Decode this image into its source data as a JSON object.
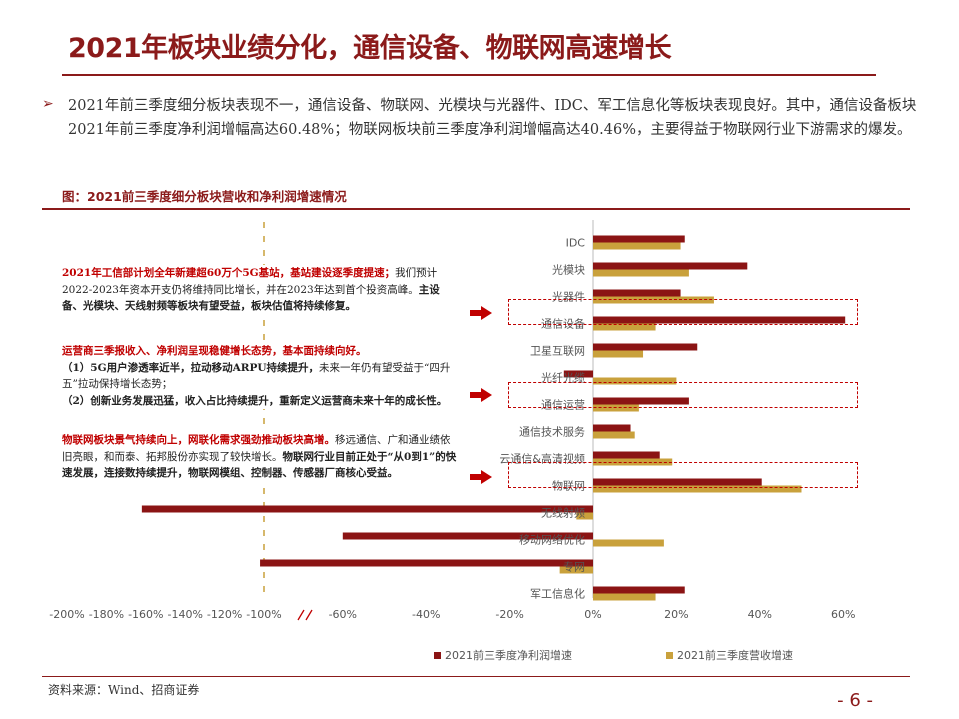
{
  "slide": {
    "title": "2021年板块业绩分化，通信设备、物联网高速增长",
    "bullet_text": "2021年前三季度细分板块表现不一，通信设备、物联网、光模块与光器件、IDC、军工信息化等板块表现良好。其中，通信设备板块2021年前三季度净利润增幅高达60.48%；物联网板块前三季度净利润增幅高达40.46%，主要得益于物联网行业下游需求的爆发。",
    "figure_title": "图：2021前三季度细分板块营收和净利润增速情况",
    "source": "资料来源：Wind、招商证券",
    "page_number": "- 6 -"
  },
  "annotations": [
    {
      "parts": [
        {
          "text": "2021年工信部计划全年新建超60万个5G基站，基站建设逐季度提速；",
          "style": "red"
        },
        {
          "text": "我们预计2022-2023年资本开支仍将维持同比增长，并在2023年达到首个投资高峰。",
          "style": ""
        },
        {
          "text": "主设备、光模块、天线射频等板块有望受益，板块估值将持续修复。",
          "style": "bold"
        }
      ]
    },
    {
      "parts": [
        {
          "text": "运营商三季报收入、净利润呈现稳健增长态势，基本面持续向好。",
          "style": "red"
        },
        {
          "text": "\n（1）5G用户渗透率近半，拉动移动ARPU持续提升，",
          "style": "bold"
        },
        {
          "text": "未来一年仍有望受益于“四升五”拉动保持增长态势；",
          "style": ""
        },
        {
          "text": "\n（2）创新业务发展迅猛，收入占比持续提升，重新定义运营商未来十年的成长性。",
          "style": "bold"
        }
      ]
    },
    {
      "parts": [
        {
          "text": "物联网板块景气持续向上，网联化需求强劲推动板块高增。",
          "style": "red"
        },
        {
          "text": "移远通信、广和通业绩依旧亮眼，和而泰、拓邦股份亦实现了较快增长。",
          "style": ""
        },
        {
          "text": "物联网行业目前正处于“从0到1”的快速发展，连接数持续提升，物联网模组、控制器、传感器厂商核心受益。",
          "style": "bold"
        }
      ]
    }
  ],
  "chart_data": {
    "type": "bar",
    "orientation": "horizontal",
    "categories": [
      "IDC",
      "光模块",
      "光器件",
      "通信设备",
      "卫星互联网",
      "光纤光缆",
      "通信运营",
      "通信技术服务",
      "云通信&高清视频",
      "物联网",
      "无线射频",
      "移动网络优化",
      "专网",
      "军工信息化"
    ],
    "highlighted_categories": [
      "通信设备",
      "通信运营",
      "物联网"
    ],
    "series": [
      {
        "name": "2021前三季度净利润增速",
        "color": "#8B1414",
        "values": [
          22,
          37,
          21,
          60.48,
          25,
          -7,
          23,
          9,
          16,
          40.46,
          -162,
          -60,
          -102,
          22
        ]
      },
      {
        "name": "2021前三季度营收增速",
        "color": "#C9A13C",
        "values": [
          21,
          23,
          29,
          15,
          12,
          20,
          11,
          10,
          19,
          50,
          -4,
          17,
          -8,
          15
        ]
      }
    ],
    "axis": {
      "broken": true,
      "tick_labels": [
        "-200%",
        "-180%",
        "-160%",
        "-140%",
        "-120%",
        "-100%",
        "-60%",
        "-40%",
        "-20%",
        "0%",
        "20%",
        "40%",
        "60%"
      ],
      "tick_values": [
        -200,
        -180,
        -160,
        -140,
        -120,
        -100,
        -60,
        -40,
        -20,
        0,
        20,
        40,
        60
      ]
    },
    "legend_position": "bottom"
  }
}
